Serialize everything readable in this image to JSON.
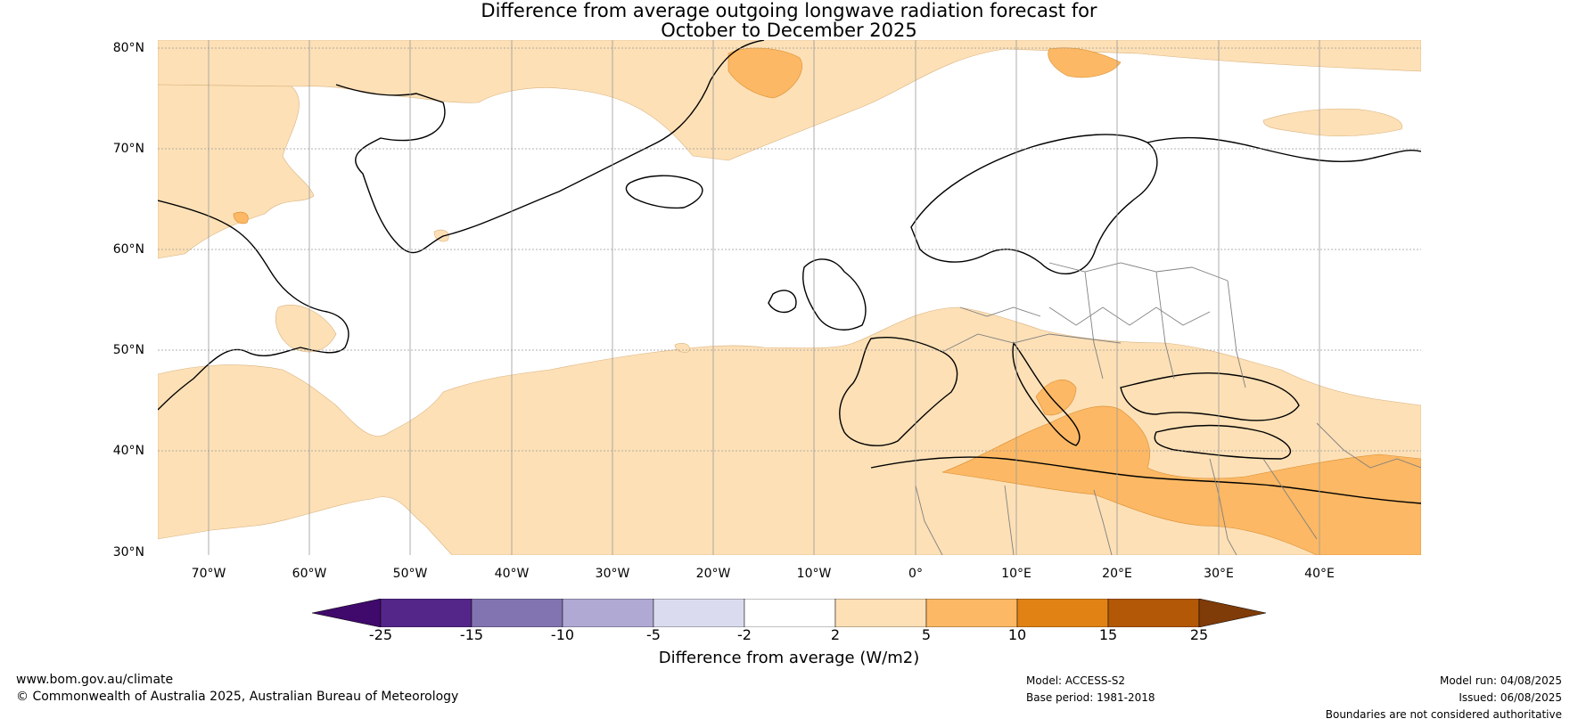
{
  "title": {
    "line1": "Difference from average outgoing longwave radiation forecast for",
    "line2": "October to December 2025"
  },
  "map": {
    "latitude_labels": [
      "80°N",
      "70°N",
      "60°N",
      "50°N",
      "40°N",
      "30°N"
    ],
    "longitude_labels": [
      "70°W",
      "60°W",
      "50°W",
      "40°W",
      "30°W",
      "20°W",
      "10°W",
      "0°",
      "10°E",
      "20°E",
      "30°E",
      "40°E"
    ],
    "colors": {
      "near_average": "#ffffff",
      "above_2_5": "#fde0b6",
      "above_5_10": "#fcb864",
      "coastline": "#000000",
      "borders": "#808080",
      "gridlines": "#999999"
    }
  },
  "colorbar": {
    "ticks": [
      "-25",
      "-15",
      "-10",
      "-5",
      "-2",
      "2",
      "5",
      "10",
      "15",
      "25"
    ],
    "colors": [
      "#3f0a6b",
      "#54268a",
      "#8174b0",
      "#b0a9d3",
      "#dadbee",
      "#ffffff",
      "#fde0b6",
      "#fcb864",
      "#e08214",
      "#b35806",
      "#7f3b08"
    ],
    "label": "Difference from average (W/m2)"
  },
  "footer": {
    "website": "www.bom.gov.au/climate",
    "copyright": "© Commonwealth of Australia 2025, Australian Bureau of Meteorology",
    "model": "Model: ACCESS-S2",
    "base_period": "Base period: 1981-2018",
    "model_run": "Model run: 04/08/2025",
    "issued": "Issued: 06/08/2025",
    "disclaimer": "Boundaries are not considered authoritative"
  }
}
